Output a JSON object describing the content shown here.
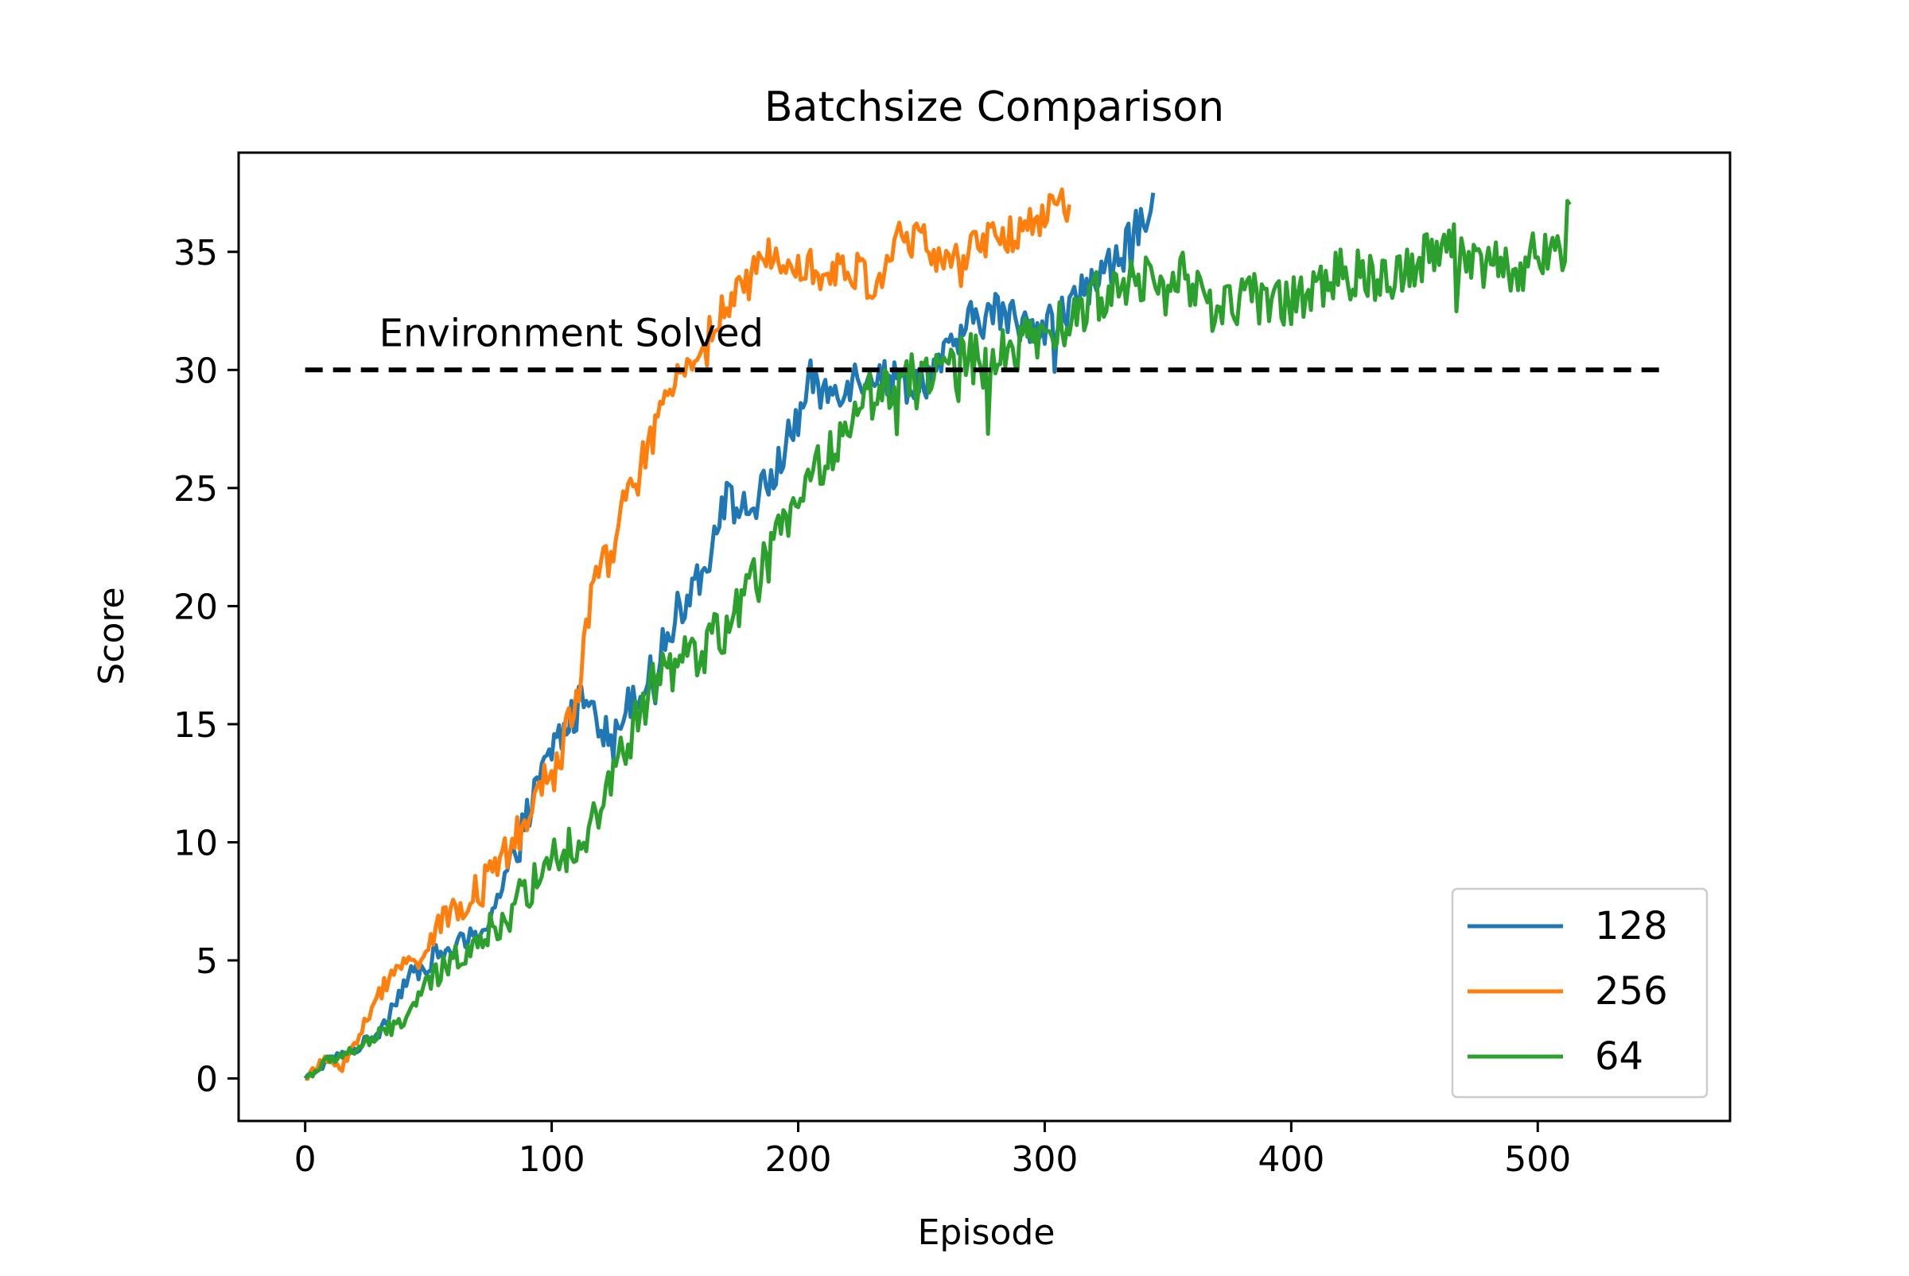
{
  "chart_data": {
    "type": "line",
    "title": "Batchsize Comparison",
    "xlabel": "Episode",
    "ylabel": "Score",
    "xlim": [
      -27,
      578
    ],
    "ylim": [
      -1.8,
      39.2
    ],
    "xticks": [
      0,
      100,
      200,
      300,
      400,
      500
    ],
    "yticks": [
      0,
      5,
      10,
      15,
      20,
      25,
      30,
      35
    ],
    "grid": false,
    "legend_position": "lower-right",
    "threshold": {
      "value": 30,
      "x_range": [
        0,
        550
      ],
      "style": "dashed",
      "color": "#000000"
    },
    "annotation": {
      "text": "Environment Solved",
      "x": 30,
      "y": 31
    },
    "series": [
      {
        "name": "128",
        "color": "#1f77b4",
        "keypoints": [
          [
            0,
            0
          ],
          [
            10,
            0.8
          ],
          [
            20,
            1.2
          ],
          [
            30,
            2.0
          ],
          [
            40,
            4.0
          ],
          [
            50,
            5.0
          ],
          [
            60,
            5.5
          ],
          [
            70,
            6.0
          ],
          [
            80,
            8.0
          ],
          [
            90,
            11.0
          ],
          [
            100,
            14.0
          ],
          [
            110,
            15.5
          ],
          [
            115,
            16.8
          ],
          [
            120,
            15.0
          ],
          [
            125,
            14.0
          ],
          [
            130,
            16.0
          ],
          [
            140,
            17.0
          ],
          [
            150,
            19.5
          ],
          [
            160,
            21.5
          ],
          [
            165,
            22.5
          ],
          [
            170,
            24.5
          ],
          [
            180,
            24.0
          ],
          [
            190,
            25.5
          ],
          [
            200,
            28.0
          ],
          [
            205,
            29.5
          ],
          [
            210,
            29.0
          ],
          [
            220,
            29.5
          ],
          [
            230,
            30.0
          ],
          [
            240,
            29.5
          ],
          [
            250,
            29.5
          ],
          [
            260,
            30.5
          ],
          [
            270,
            32.0
          ],
          [
            280,
            32.5
          ],
          [
            290,
            32.0
          ],
          [
            300,
            32.0
          ],
          [
            310,
            32.5
          ],
          [
            320,
            34.0
          ],
          [
            330,
            34.5
          ],
          [
            340,
            36.5
          ],
          [
            344,
            37.5
          ]
        ],
        "noise": 0.9
      },
      {
        "name": "256",
        "color": "#ff7f0e",
        "keypoints": [
          [
            0,
            0
          ],
          [
            8,
            0.8
          ],
          [
            15,
            0.5
          ],
          [
            20,
            1.5
          ],
          [
            25,
            2.5
          ],
          [
            30,
            3.5
          ],
          [
            35,
            4.5
          ],
          [
            45,
            5.0
          ],
          [
            55,
            6.5
          ],
          [
            65,
            7.5
          ],
          [
            75,
            8.5
          ],
          [
            85,
            10.0
          ],
          [
            95,
            12.0
          ],
          [
            100,
            13.0
          ],
          [
            105,
            14.5
          ],
          [
            110,
            16.0
          ],
          [
            115,
            20.0
          ],
          [
            120,
            21.5
          ],
          [
            125,
            22.5
          ],
          [
            130,
            24.5
          ],
          [
            135,
            25.5
          ],
          [
            140,
            27.0
          ],
          [
            145,
            28.0
          ],
          [
            150,
            29.5
          ],
          [
            160,
            31.0
          ],
          [
            170,
            32.5
          ],
          [
            180,
            33.5
          ],
          [
            185,
            35.0
          ],
          [
            195,
            35.0
          ],
          [
            205,
            34.5
          ],
          [
            210,
            34.0
          ],
          [
            215,
            34.0
          ],
          [
            220,
            34.5
          ],
          [
            230,
            33.5
          ],
          [
            235,
            34.5
          ],
          [
            240,
            35.5
          ],
          [
            250,
            35.5
          ],
          [
            260,
            34.5
          ],
          [
            270,
            35.0
          ],
          [
            280,
            35.5
          ],
          [
            290,
            36.0
          ],
          [
            300,
            36.5
          ],
          [
            310,
            37.0
          ]
        ],
        "noise": 0.9
      },
      {
        "name": "64",
        "color": "#2ca02c",
        "keypoints": [
          [
            0,
            0
          ],
          [
            10,
            0.8
          ],
          [
            20,
            1.2
          ],
          [
            30,
            1.8
          ],
          [
            40,
            2.5
          ],
          [
            50,
            4.0
          ],
          [
            60,
            5.0
          ],
          [
            70,
            6.0
          ],
          [
            80,
            6.5
          ],
          [
            90,
            8.0
          ],
          [
            100,
            9.5
          ],
          [
            110,
            10.0
          ],
          [
            120,
            11.5
          ],
          [
            130,
            14.0
          ],
          [
            140,
            16.5
          ],
          [
            150,
            17.5
          ],
          [
            160,
            18.0
          ],
          [
            170,
            19.0
          ],
          [
            180,
            20.5
          ],
          [
            190,
            22.5
          ],
          [
            200,
            24.5
          ],
          [
            210,
            26.0
          ],
          [
            220,
            28.0
          ],
          [
            230,
            29.0
          ],
          [
            240,
            29.5
          ],
          [
            250,
            30.0
          ],
          [
            260,
            30.0
          ],
          [
            270,
            30.5
          ],
          [
            280,
            30.5
          ],
          [
            290,
            31.0
          ],
          [
            300,
            31.5
          ],
          [
            310,
            32.0
          ],
          [
            320,
            33.0
          ],
          [
            330,
            33.5
          ],
          [
            340,
            34.0
          ],
          [
            350,
            34.5
          ],
          [
            360,
            33.5
          ],
          [
            370,
            32.5
          ],
          [
            380,
            33.0
          ],
          [
            390,
            33.0
          ],
          [
            400,
            33.0
          ],
          [
            410,
            33.5
          ],
          [
            420,
            34.0
          ],
          [
            430,
            34.0
          ],
          [
            440,
            34.0
          ],
          [
            450,
            34.5
          ],
          [
            460,
            35.5
          ],
          [
            470,
            35.0
          ],
          [
            480,
            34.5
          ],
          [
            490,
            34.0
          ],
          [
            500,
            35.0
          ],
          [
            510,
            35.0
          ],
          [
            513,
            37.0
          ]
        ],
        "noise": 1.1
      }
    ]
  }
}
